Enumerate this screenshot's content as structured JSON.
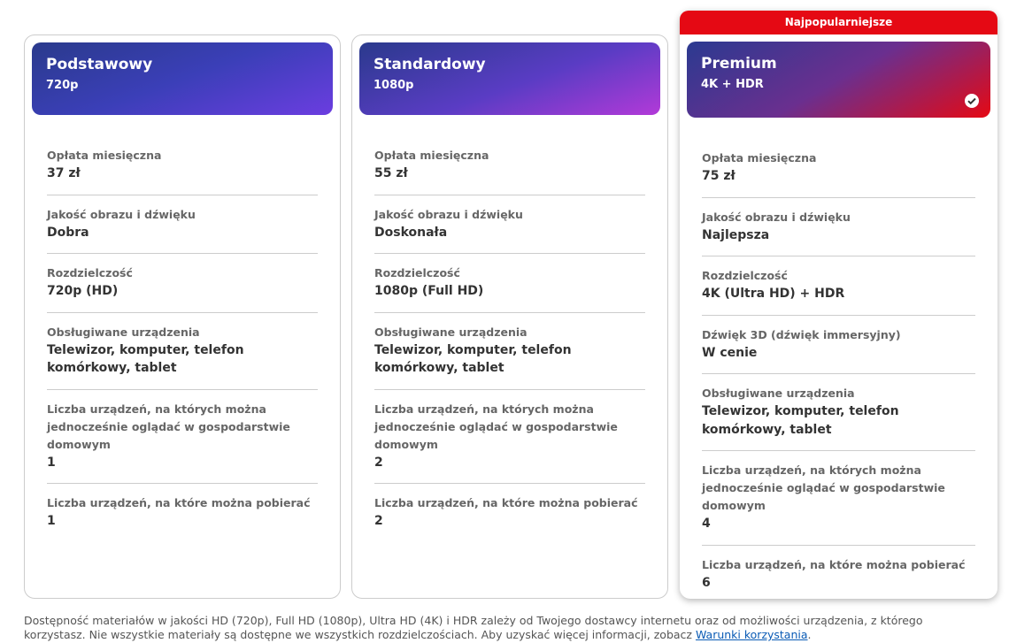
{
  "plans": [
    {
      "name": "Podstawowy",
      "resolution": "720p",
      "features": [
        {
          "label": "Opłata miesięczna",
          "value": "37 zł"
        },
        {
          "label": "Jakość obrazu i dźwięku",
          "value": "Dobra"
        },
        {
          "label": "Rozdzielczość",
          "value": "720p (HD)"
        },
        {
          "label": "Obsługiwane urządzenia",
          "value": "Telewizor, komputer, telefon komórkowy, tablet"
        },
        {
          "label": "Liczba urządzeń, na których można jednocześnie oglądać w gospodarstwie domowym",
          "value": "1"
        },
        {
          "label": "Liczba urządzeń, na które można pobierać",
          "value": "1"
        }
      ]
    },
    {
      "name": "Standardowy",
      "resolution": "1080p",
      "features": [
        {
          "label": "Opłata miesięczna",
          "value": "55 zł"
        },
        {
          "label": "Jakość obrazu i dźwięku",
          "value": "Doskonała"
        },
        {
          "label": "Rozdzielczość",
          "value": "1080p (Full HD)"
        },
        {
          "label": "Obsługiwane urządzenia",
          "value": "Telewizor, komputer, telefon komórkowy, tablet"
        },
        {
          "label": "Liczba urządzeń, na których można jednocześnie oglądać w gospodarstwie domowym",
          "value": "2"
        },
        {
          "label": "Liczba urządzeń, na które można pobierać",
          "value": "2"
        }
      ]
    },
    {
      "name": "Premium",
      "resolution": "4K + HDR",
      "badge": "Najpopularniejsze",
      "features": [
        {
          "label": "Opłata miesięczna",
          "value": "75 zł"
        },
        {
          "label": "Jakość obrazu i dźwięku",
          "value": "Najlepsza"
        },
        {
          "label": "Rozdzielczość",
          "value": "4K (Ultra HD) + HDR"
        },
        {
          "label": "Dźwięk 3D (dźwięk immersyjny)",
          "value": "W cenie"
        },
        {
          "label": "Obsługiwane urządzenia",
          "value": "Telewizor, komputer, telefon komórkowy, tablet"
        },
        {
          "label": "Liczba urządzeń, na których można jednocześnie oglądać w gospodarstwie domowym",
          "value": "4"
        },
        {
          "label": "Liczba urządzeń, na które można pobierać",
          "value": "6"
        }
      ]
    }
  ],
  "footer": {
    "text": "Dostępność materiałów w jakości HD (720p), Full HD (1080p), Ultra HD (4K) i HDR zależy od Twojego dostawcy internetu oraz od możliwości urządzenia, z którego korzystasz. Nie wszystkie materiały są dostępne we wszystkich rozdzielczościach. Aby uzyskać więcej informacji, zobacz",
    "link": "Warunki korzystania",
    "suffix": "."
  }
}
